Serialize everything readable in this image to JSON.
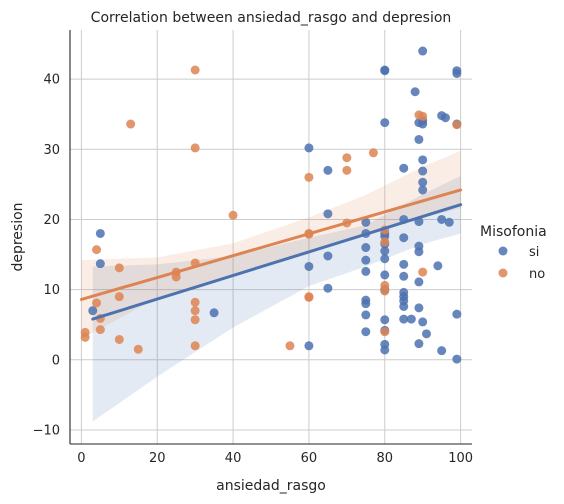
{
  "chart_data": {
    "type": "scatter",
    "title": "Correlation between ansiedad_rasgo and depresion",
    "xlabel": "ansiedad_rasgo",
    "ylabel": "depresion",
    "xlim": [
      -3,
      103
    ],
    "ylim": [
      -12,
      47
    ],
    "xticks": [
      0,
      20,
      40,
      60,
      80,
      100
    ],
    "yticks": [
      -10,
      0,
      10,
      20,
      30,
      40
    ],
    "grid": true,
    "legend": {
      "title": "Misofonia",
      "placement": "right"
    },
    "series": [
      {
        "name": "si",
        "color": "#4c72b0",
        "points": [
          [
            3,
            7
          ],
          [
            5,
            18
          ],
          [
            5,
            13.7
          ],
          [
            35,
            6.7
          ],
          [
            60,
            30.2
          ],
          [
            60,
            13.3
          ],
          [
            60,
            2
          ],
          [
            65,
            27
          ],
          [
            65,
            20.8
          ],
          [
            65,
            14.8
          ],
          [
            65,
            10.2
          ],
          [
            75,
            19.6
          ],
          [
            75,
            18
          ],
          [
            75,
            16
          ],
          [
            75,
            14.2
          ],
          [
            75,
            12.6
          ],
          [
            75,
            8.5
          ],
          [
            75,
            8
          ],
          [
            75,
            6.4
          ],
          [
            75,
            4
          ],
          [
            80,
            41.3
          ],
          [
            80,
            41.2
          ],
          [
            80,
            33.8
          ],
          [
            80,
            18
          ],
          [
            80,
            17.6
          ],
          [
            80,
            16.5
          ],
          [
            80,
            15.5
          ],
          [
            80,
            14.4
          ],
          [
            80,
            12.1
          ],
          [
            80,
            10
          ],
          [
            80,
            5.7
          ],
          [
            80,
            4.2
          ],
          [
            80,
            2.2
          ],
          [
            80,
            1.4
          ],
          [
            85,
            27.3
          ],
          [
            85,
            20
          ],
          [
            85,
            17.4
          ],
          [
            85,
            13.6
          ],
          [
            85,
            11.9
          ],
          [
            85,
            9.6
          ],
          [
            85,
            9
          ],
          [
            85,
            8.4
          ],
          [
            85,
            7.6
          ],
          [
            85,
            5.8
          ],
          [
            87,
            5.8
          ],
          [
            88,
            38.2
          ],
          [
            89,
            33.8
          ],
          [
            89,
            31.4
          ],
          [
            89,
            19.7
          ],
          [
            89,
            16.2
          ],
          [
            89,
            15.4
          ],
          [
            89,
            11.1
          ],
          [
            89,
            7.4
          ],
          [
            89,
            2.3
          ],
          [
            90,
            44
          ],
          [
            90,
            34.1
          ],
          [
            90,
            33.6
          ],
          [
            90,
            28.5
          ],
          [
            90,
            26.9
          ],
          [
            90,
            25.3
          ],
          [
            90,
            24.2
          ],
          [
            90,
            5.4
          ],
          [
            91,
            3.7
          ],
          [
            94,
            13.4
          ],
          [
            95,
            34.8
          ],
          [
            95,
            20
          ],
          [
            95,
            1.3
          ],
          [
            96,
            34.5
          ],
          [
            97,
            19.6
          ],
          [
            99,
            41.2
          ],
          [
            99,
            40.8
          ],
          [
            99,
            33.6
          ],
          [
            99,
            6.5
          ],
          [
            99,
            0.1
          ]
        ],
        "fit": {
          "x0": 3,
          "y0": 5.8,
          "x1": 100,
          "y1": 22.1,
          "ci_upper": [
            [
              3,
              13.3
            ],
            [
              20,
              13.6
            ],
            [
              40,
              14.8
            ],
            [
              60,
              17.4
            ],
            [
              75,
              19.2
            ],
            [
              90,
              23.6
            ],
            [
              100,
              26.2
            ]
          ],
          "ci_lower": [
            [
              3,
              -8.8
            ],
            [
              20,
              -2.4
            ],
            [
              40,
              4.6
            ],
            [
              60,
              10.5
            ],
            [
              75,
              13.3
            ],
            [
              90,
              16.5
            ],
            [
              100,
              18.0
            ]
          ]
        }
      },
      {
        "name": "no",
        "color": "#dd8452",
        "points": [
          [
            1,
            3.9
          ],
          [
            1,
            3.2
          ],
          [
            4,
            15.7
          ],
          [
            4,
            8.1
          ],
          [
            5,
            5.9
          ],
          [
            5,
            4.3
          ],
          [
            10,
            13.1
          ],
          [
            10,
            9
          ],
          [
            10,
            2.9
          ],
          [
            13,
            33.6
          ],
          [
            15,
            1.5
          ],
          [
            25,
            12.5
          ],
          [
            25,
            11.8
          ],
          [
            30,
            41.3
          ],
          [
            30,
            30.2
          ],
          [
            30,
            13.8
          ],
          [
            30,
            8.2
          ],
          [
            30,
            7
          ],
          [
            30,
            5.7
          ],
          [
            30,
            2
          ],
          [
            40,
            20.6
          ],
          [
            55,
            2
          ],
          [
            60,
            26
          ],
          [
            60,
            18
          ],
          [
            60,
            17.9
          ],
          [
            60,
            9
          ],
          [
            60,
            8.9
          ],
          [
            70,
            28.8
          ],
          [
            70,
            27
          ],
          [
            70,
            19.5
          ],
          [
            77,
            29.5
          ],
          [
            80,
            18.5
          ],
          [
            80,
            16.8
          ],
          [
            80,
            10.6
          ],
          [
            80,
            9.8
          ],
          [
            80,
            4
          ],
          [
            89,
            34.9
          ],
          [
            90,
            34.7
          ],
          [
            90,
            12.5
          ],
          [
            99,
            33.5
          ]
        ],
        "fit": {
          "x0": 0,
          "y0": 8.6,
          "x1": 100,
          "y1": 24.2,
          "ci_upper": [
            [
              0,
              14.2
            ],
            [
              20,
              14.6
            ],
            [
              40,
              16.6
            ],
            [
              60,
              20.3
            ],
            [
              75,
              23.5
            ],
            [
              90,
              27.5
            ],
            [
              100,
              29.8
            ]
          ],
          "ci_lower": [
            [
              0,
              3.0
            ],
            [
              20,
              8.8
            ],
            [
              40,
              11.9
            ],
            [
              60,
              15.1
            ],
            [
              75,
              18.0
            ],
            [
              90,
              20.2
            ],
            [
              100,
              21.6
            ]
          ]
        }
      }
    ]
  }
}
